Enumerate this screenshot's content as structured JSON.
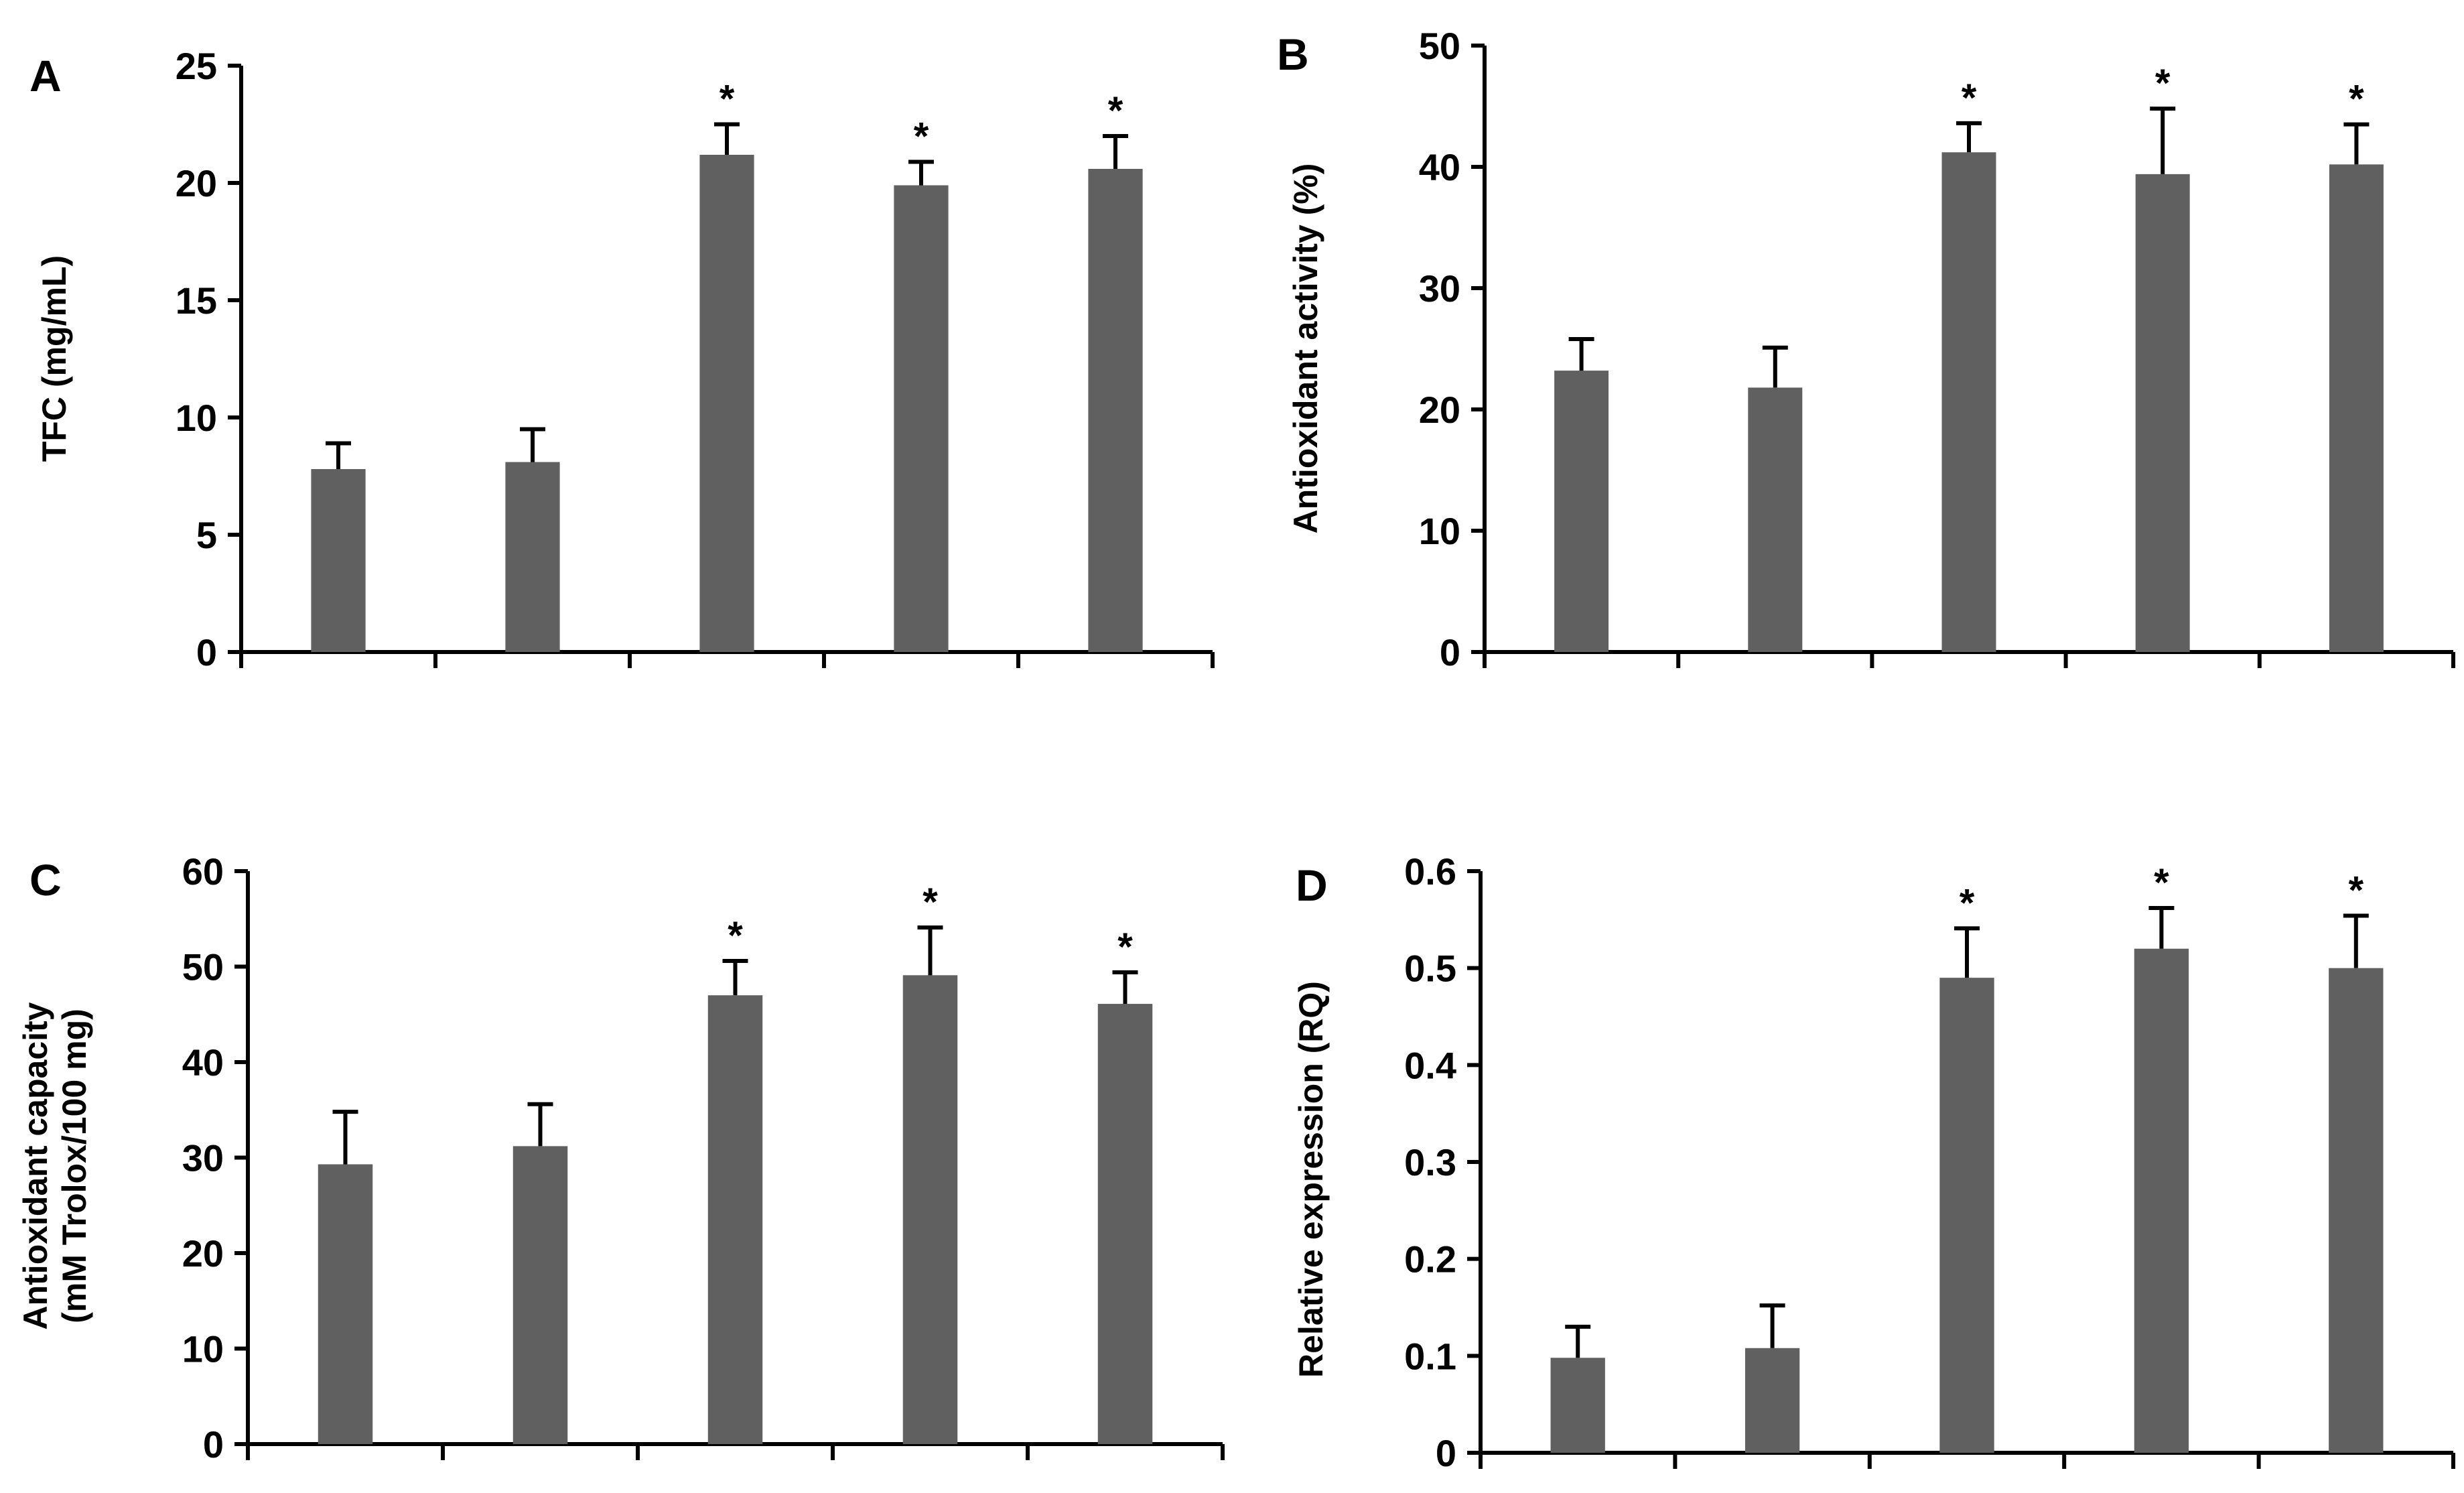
{
  "figure": {
    "bar_color": "#606060",
    "axis_color": "#000000",
    "error_color": "#000000"
  },
  "chart_data": [
    {
      "type": "bar",
      "panel": "A",
      "ylabel": [
        "TFC (mg/mL)"
      ],
      "ylim": [
        0,
        25
      ],
      "ticks": [
        0,
        5,
        10,
        15,
        20,
        25
      ],
      "tick_labels": [
        "0",
        "5",
        "10",
        "15",
        "20",
        "25"
      ],
      "categories": [
        "",
        "",
        "",
        "",
        ""
      ],
      "values": [
        7.8,
        8.1,
        21.2,
        19.9,
        20.6
      ],
      "errors": [
        1.1,
        1.4,
        1.3,
        1.0,
        1.4
      ],
      "significance": [
        "",
        "",
        "*",
        "*",
        "*"
      ]
    },
    {
      "type": "bar",
      "panel": "B",
      "ylabel": [
        "Antioxidant activity (%)"
      ],
      "ylim": [
        0,
        50
      ],
      "ticks": [
        0,
        10,
        20,
        30,
        40,
        50
      ],
      "tick_labels": [
        "0",
        "10",
        "20",
        "30",
        "40",
        "50"
      ],
      "categories": [
        "",
        "",
        "",
        "",
        ""
      ],
      "values": [
        23.2,
        21.8,
        41.2,
        39.4,
        40.2
      ],
      "errors": [
        2.6,
        3.3,
        2.4,
        5.4,
        3.3
      ],
      "significance": [
        "",
        "",
        "*",
        "*",
        "*"
      ]
    },
    {
      "type": "bar",
      "panel": "C",
      "ylabel": [
        "Antioxidant capacity",
        "(mM Trolox/100 mg)"
      ],
      "ylim": [
        0,
        60
      ],
      "ticks": [
        0,
        10,
        20,
        30,
        40,
        50,
        60
      ],
      "tick_labels": [
        "0",
        "10",
        "20",
        "30",
        "40",
        "50",
        "60"
      ],
      "categories": [
        "",
        "",
        "",
        "",
        ""
      ],
      "values": [
        29.3,
        31.2,
        47.0,
        49.1,
        46.1
      ],
      "errors": [
        5.5,
        4.4,
        3.6,
        5.0,
        3.3
      ],
      "significance": [
        "",
        "",
        "*",
        "*",
        "*"
      ]
    },
    {
      "type": "bar",
      "panel": "D",
      "ylabel": [
        "Relative expression (RQ)"
      ],
      "ylim": [
        0,
        0.6
      ],
      "ticks": [
        0,
        0.1,
        0.2,
        0.3,
        0.4,
        0.5,
        0.6
      ],
      "tick_labels": [
        "0",
        "0.1",
        "0.2",
        "0.3",
        "0.4",
        "0.5",
        "0.6"
      ],
      "categories": [
        "",
        "",
        "",
        "",
        ""
      ],
      "values": [
        0.098,
        0.108,
        0.49,
        0.52,
        0.5
      ],
      "errors": [
        0.032,
        0.044,
        0.051,
        0.042,
        0.054
      ],
      "significance": [
        "",
        "",
        "*",
        "*",
        "*"
      ]
    }
  ]
}
